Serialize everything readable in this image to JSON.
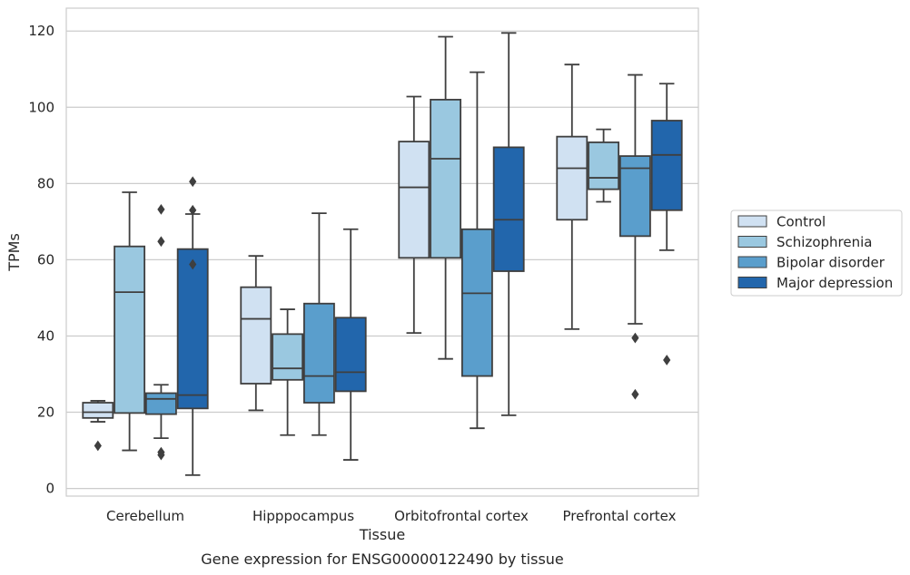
{
  "chart_data": {
    "type": "box",
    "title": "",
    "caption": "Gene expression for ENSG00000122490 by tissue",
    "xlabel": "Tissue",
    "ylabel": "TPMs",
    "ylim": [
      -2,
      126
    ],
    "yticks": [
      0,
      20,
      40,
      60,
      80,
      100,
      120
    ],
    "grid": "horizontal",
    "legend_position": "outside-right",
    "categories": [
      "Cerebellum",
      "Hipppocampus",
      "Orbitofrontal cortex",
      "Prefrontal cortex"
    ],
    "series": [
      {
        "name": "Control",
        "color": "#d0e1f2",
        "boxes": [
          {
            "q1": 18.5,
            "median": 20.0,
            "q3": 22.5,
            "whisker_low": 17.5,
            "whisker_high": 23.0,
            "outliers": [
              11.2
            ]
          },
          {
            "q1": 27.5,
            "median": 44.5,
            "q3": 52.8,
            "whisker_low": 20.5,
            "whisker_high": 61.0,
            "outliers": []
          },
          {
            "q1": 60.5,
            "median": 79.0,
            "q3": 91.0,
            "whisker_low": 40.8,
            "whisker_high": 102.8,
            "outliers": []
          },
          {
            "q1": 70.5,
            "median": 84.0,
            "q3": 92.3,
            "whisker_low": 41.8,
            "whisker_high": 111.2,
            "outliers": []
          }
        ]
      },
      {
        "name": "Schizophrenia",
        "color": "#9ac8e0",
        "boxes": [
          {
            "q1": 19.8,
            "median": 51.5,
            "q3": 63.5,
            "whisker_low": 10.0,
            "whisker_high": 77.7,
            "outliers": []
          },
          {
            "q1": 28.5,
            "median": 31.5,
            "q3": 40.5,
            "whisker_low": 14.0,
            "whisker_high": 47.0,
            "outliers": []
          },
          {
            "q1": 60.5,
            "median": 86.5,
            "q3": 102.0,
            "whisker_low": 34.0,
            "whisker_high": 118.5,
            "outliers": []
          },
          {
            "q1": 78.5,
            "median": 81.5,
            "q3": 90.8,
            "whisker_low": 75.2,
            "whisker_high": 94.2,
            "outliers": []
          }
        ]
      },
      {
        "name": "Bipolar disorder",
        "color": "#5a9ecc",
        "boxes": [
          {
            "q1": 19.5,
            "median": 23.5,
            "q3": 25.0,
            "whisker_low": 13.2,
            "whisker_high": 27.2,
            "outliers": [
              73.2,
              64.8,
              9.5,
              8.8
            ]
          },
          {
            "q1": 22.5,
            "median": 29.5,
            "q3": 48.5,
            "whisker_low": 14.0,
            "whisker_high": 72.2,
            "outliers": []
          },
          {
            "q1": 29.5,
            "median": 51.2,
            "q3": 68.0,
            "whisker_low": 15.8,
            "whisker_high": 109.2,
            "outliers": []
          },
          {
            "q1": 66.2,
            "median": 84.0,
            "q3": 87.2,
            "whisker_low": 43.2,
            "whisker_high": 108.5,
            "outliers": [
              39.5,
              24.7
            ]
          }
        ]
      },
      {
        "name": "Major depression",
        "color": "#2266ac",
        "boxes": [
          {
            "q1": 21.0,
            "median": 24.5,
            "q3": 62.8,
            "whisker_low": 3.5,
            "whisker_high": 72.0,
            "outliers": [
              80.5,
              73.0,
              58.8
            ]
          },
          {
            "q1": 25.5,
            "median": 30.5,
            "q3": 44.8,
            "whisker_low": 7.5,
            "whisker_high": 68.0,
            "outliers": []
          },
          {
            "q1": 57.0,
            "median": 70.5,
            "q3": 89.5,
            "whisker_low": 19.2,
            "whisker_high": 119.5,
            "outliers": []
          },
          {
            "q1": 73.0,
            "median": 87.5,
            "q3": 96.5,
            "whisker_low": 62.5,
            "whisker_high": 106.2,
            "outliers": [
              33.7
            ]
          }
        ]
      }
    ]
  }
}
